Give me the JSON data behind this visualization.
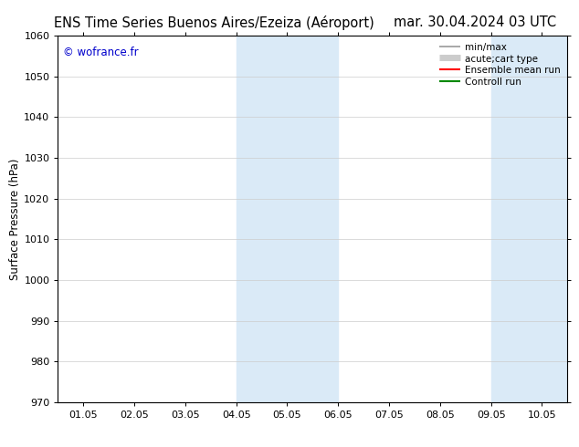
{
  "title_left": "ENS Time Series Buenos Aires/Ezeiza (Aéroport)",
  "title_right": "mar. 30.04.2024 03 UTC",
  "ylabel": "Surface Pressure (hPa)",
  "ylim": [
    970,
    1060
  ],
  "yticks": [
    970,
    980,
    990,
    1000,
    1010,
    1020,
    1030,
    1040,
    1050,
    1060
  ],
  "xtick_labels": [
    "01.05",
    "02.05",
    "03.05",
    "04.05",
    "05.05",
    "06.05",
    "07.05",
    "08.05",
    "09.05",
    "10.05"
  ],
  "watermark": "© wofrance.fr",
  "watermark_color": "#0000cc",
  "shaded_regions": [
    {
      "xstart": 3.0,
      "xend": 5.0,
      "color": "#daeaf7"
    },
    {
      "xstart": 8.0,
      "xend": 9.5,
      "color": "#daeaf7"
    }
  ],
  "legend_entries": [
    {
      "label": "min/max",
      "color": "#999999",
      "lw": 1.2,
      "linestyle": "-"
    },
    {
      "label": "acute;cart type",
      "color": "#cccccc",
      "lw": 5,
      "linestyle": "-"
    },
    {
      "label": "Ensemble mean run",
      "color": "#ff0000",
      "lw": 1.5,
      "linestyle": "-"
    },
    {
      "label": "Controll run",
      "color": "#008800",
      "lw": 1.5,
      "linestyle": "-"
    }
  ],
  "bg_color": "#ffffff",
  "spine_color": "#000000",
  "grid_color": "#cccccc",
  "title_fontsize": 10.5,
  "tick_fontsize": 8,
  "ylabel_fontsize": 8.5,
  "legend_fontsize": 7.5
}
